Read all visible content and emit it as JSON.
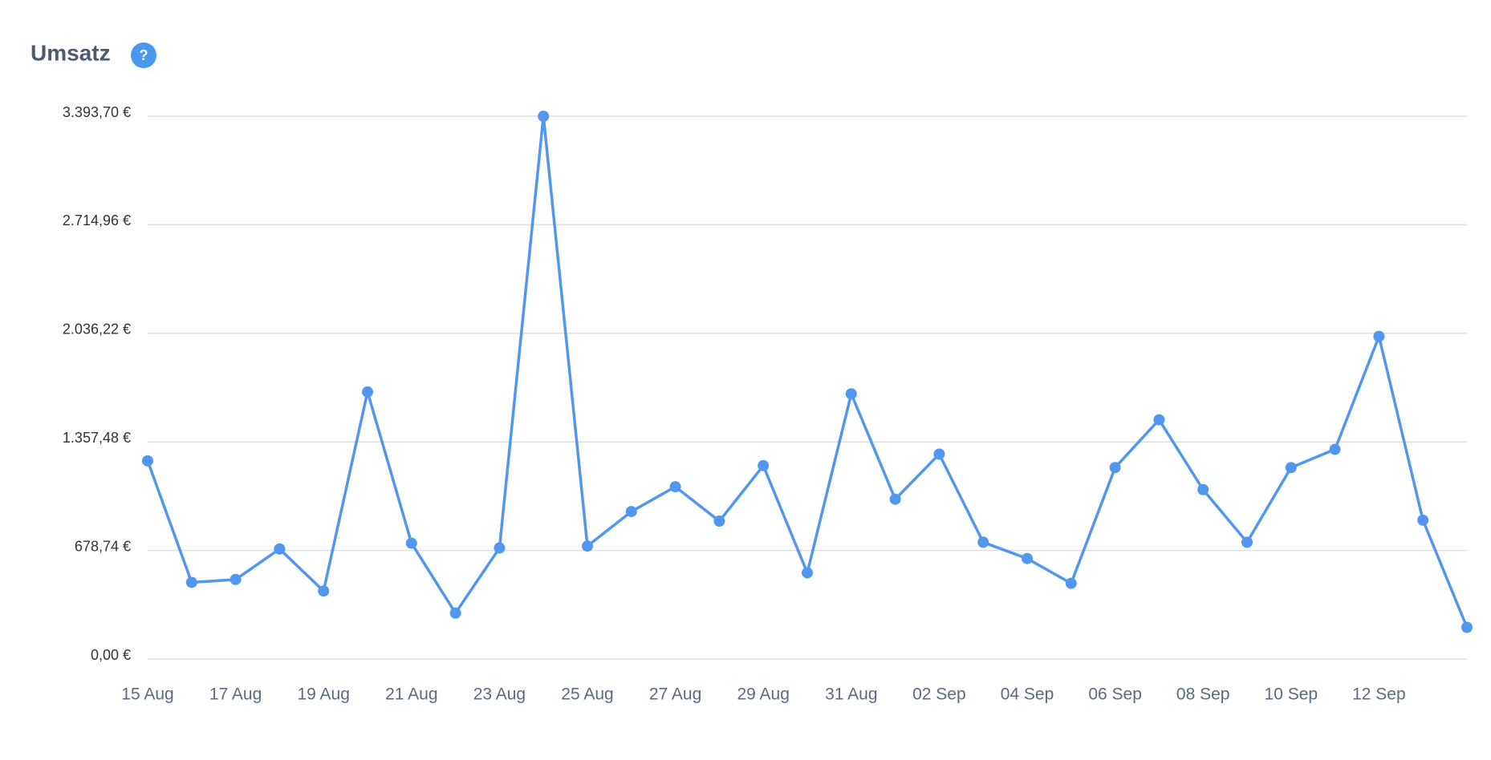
{
  "chart_data": {
    "type": "line",
    "title": "Umsatz",
    "help_label": "?",
    "categories": [
      "15 Aug",
      null,
      "17 Aug",
      null,
      "19 Aug",
      null,
      "21 Aug",
      null,
      "23 Aug",
      null,
      "25 Aug",
      null,
      "27 Aug",
      null,
      "29 Aug",
      null,
      "31 Aug",
      null,
      "02 Sep",
      null,
      "04 Sep",
      null,
      "06 Sep",
      null,
      "08 Sep",
      null,
      "10 Sep",
      null,
      "12 Sep",
      null,
      null
    ],
    "series": [
      {
        "name": "Umsatz",
        "color": "#5196ef",
        "values": [
          1239,
          479,
          497,
          688,
          425,
          1670,
          724,
          287,
          694,
          3393.7,
          706,
          922,
          1077,
          862,
          1209,
          539,
          1658,
          999,
          1281,
          730,
          628,
          473,
          1197,
          1496,
          1059,
          730,
          1197,
          1311,
          2017,
          868,
          198
        ]
      }
    ],
    "ylim": [
      0,
      3393.7
    ],
    "yticks": [
      {
        "value": 0,
        "label": "0,00 €"
      },
      {
        "value": 678.74,
        "label": "678,74 €"
      },
      {
        "value": 1357.48,
        "label": "1.357,48 €"
      },
      {
        "value": 2036.22,
        "label": "2.036,22 €"
      },
      {
        "value": 2714.96,
        "label": "2.714,96 €"
      },
      {
        "value": 3393.7,
        "label": "3.393,70 €"
      }
    ],
    "grid": true
  }
}
